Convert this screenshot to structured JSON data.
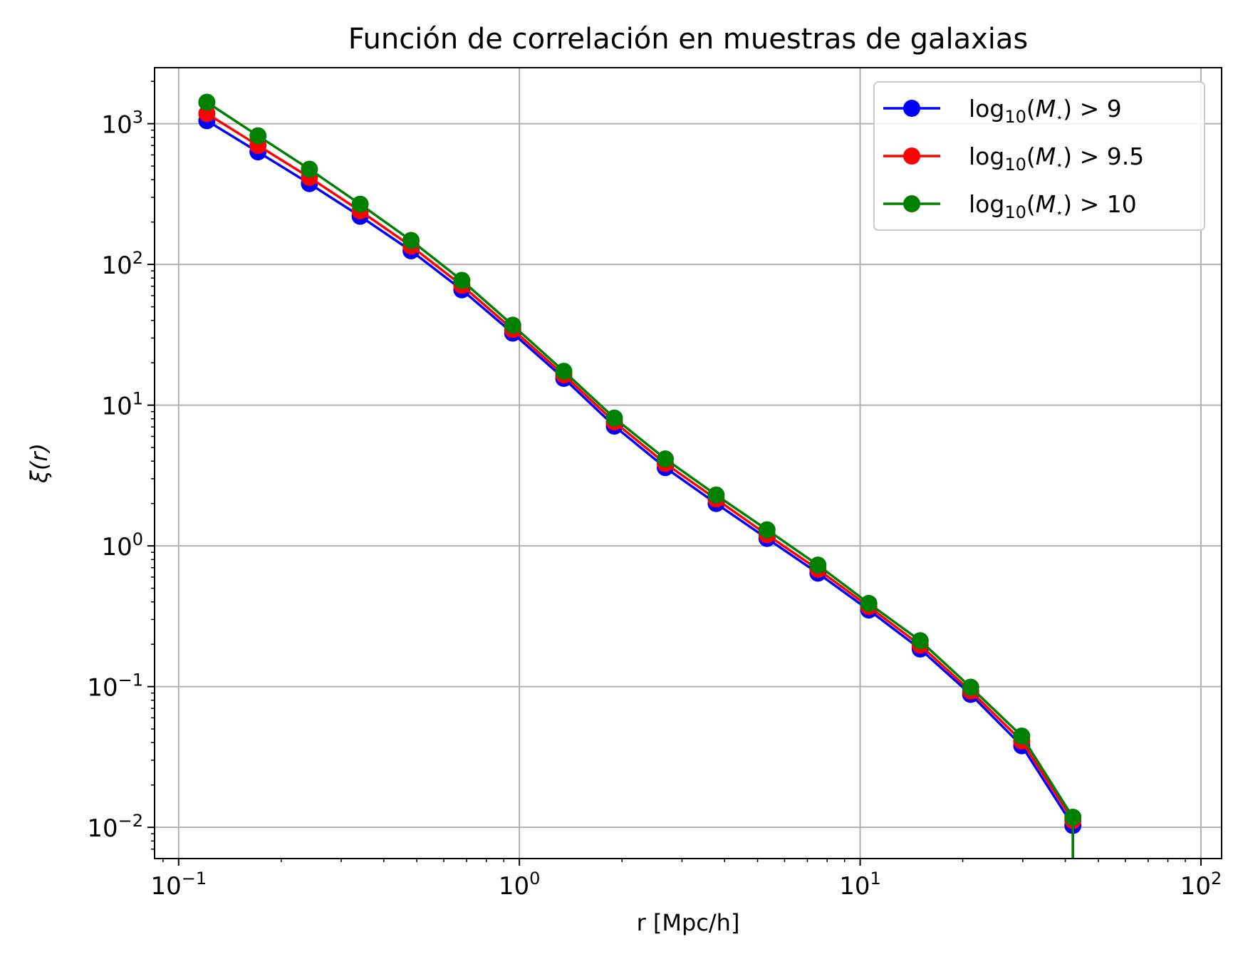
{
  "chart_data": {
    "type": "line",
    "title": "Función de correlación en muestras de galaxias",
    "xlabel": "r [Mpc/h]",
    "ylabel": "ξ(r)",
    "x_scale": "log",
    "y_scale": "log",
    "xlim": [
      0.085,
      115
    ],
    "ylim": [
      0.006,
      2500
    ],
    "grid": true,
    "legend_position": "top-right",
    "x_ticks": [
      {
        "value": 0.1,
        "base": "10",
        "exp": "−1"
      },
      {
        "value": 1,
        "base": "10",
        "exp": "0"
      },
      {
        "value": 10,
        "base": "10",
        "exp": "1"
      },
      {
        "value": 100,
        "base": "10",
        "exp": "2"
      }
    ],
    "y_ticks": [
      {
        "value": 0.01,
        "base": "10",
        "exp": "−2"
      },
      {
        "value": 0.1,
        "base": "10",
        "exp": "−1"
      },
      {
        "value": 1,
        "base": "10",
        "exp": "0"
      },
      {
        "value": 10,
        "base": "10",
        "exp": "1"
      },
      {
        "value": 100,
        "base": "10",
        "exp": "2"
      },
      {
        "value": 1000,
        "base": "10",
        "exp": "3"
      }
    ],
    "x": [
      0.121,
      0.171,
      0.242,
      0.341,
      0.481,
      0.678,
      0.956,
      1.35,
      1.9,
      2.68,
      3.78,
      5.33,
      7.52,
      10.6,
      15.0,
      21.1,
      29.8,
      42.1
    ],
    "series": [
      {
        "name": "log10(M⋆) > 9",
        "legend_parts": {
          "prefix": "log",
          "sub": "10",
          "middle": "(",
          "var": "M",
          "sup": "⋆",
          "suffix": ") > 9"
        },
        "color": "#0000ff",
        "values": [
          1050,
          630,
          375,
          220,
          125,
          66,
          32.5,
          15.5,
          7.1,
          3.6,
          2.0,
          1.13,
          0.64,
          0.35,
          0.185,
          0.088,
          0.038,
          0.0103
        ]
      },
      {
        "name": "log10(M⋆) > 9.5",
        "legend_parts": {
          "prefix": "log",
          "sub": "10",
          "middle": "(",
          "var": "M",
          "sup": "⋆",
          "suffix": ") > 9.5"
        },
        "color": "#ff0000",
        "values": [
          1180,
          700,
          415,
          240,
          135,
          71,
          34.5,
          16.4,
          7.6,
          3.85,
          2.15,
          1.2,
          0.68,
          0.37,
          0.197,
          0.093,
          0.041,
          0.0112
        ]
      },
      {
        "name": "log10(M⋆) > 10",
        "legend_parts": {
          "prefix": "log",
          "sub": "10",
          "middle": "(",
          "var": "M",
          "sup": "⋆",
          "suffix": ") > 10"
        },
        "color": "#008000",
        "values": [
          1420,
          820,
          475,
          268,
          148,
          77,
          37,
          17.4,
          8.1,
          4.15,
          2.3,
          1.3,
          0.73,
          0.39,
          0.212,
          0.099,
          0.0445,
          0.0118
        ]
      }
    ]
  }
}
